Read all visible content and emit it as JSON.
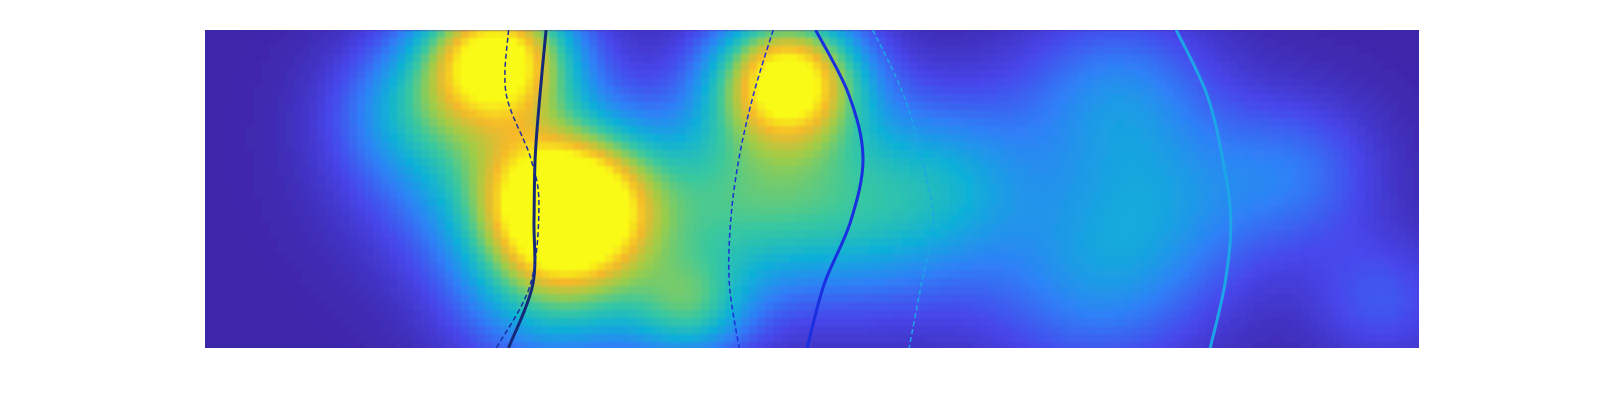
{
  "chart_data": {
    "type": "heatmap",
    "title": "",
    "xlabel": "",
    "ylabel": "",
    "grid": false,
    "legend": "none",
    "axes_visible": false,
    "colormap": "parula",
    "colormap_stops": [
      "#3e26a8",
      "#4746eb",
      "#2f80f7",
      "#0fb0d8",
      "#38c8a0",
      "#9dcd48",
      "#f5b82a",
      "#f9fb15"
    ],
    "background_color": "#3e26a8",
    "density_peaks": [
      {
        "x": 0.24,
        "y": 0.92,
        "value": 0.93,
        "spread": 0.06
      },
      {
        "x": 0.3,
        "y": 0.45,
        "value": 1.0,
        "spread": 0.065
      },
      {
        "x": 0.48,
        "y": 0.85,
        "value": 1.0,
        "spread": 0.06
      },
      {
        "x": 0.23,
        "y": 0.62,
        "value": 0.42,
        "spread": 0.1
      },
      {
        "x": 0.29,
        "y": 0.2,
        "value": 0.46,
        "spread": 0.08
      },
      {
        "x": 0.4,
        "y": 0.12,
        "value": 0.4,
        "spread": 0.05
      },
      {
        "x": 0.41,
        "y": 0.45,
        "value": 0.32,
        "spread": 0.09
      },
      {
        "x": 0.48,
        "y": 0.5,
        "value": 0.3,
        "spread": 0.09
      },
      {
        "x": 0.56,
        "y": 0.4,
        "value": 0.27,
        "spread": 0.09
      },
      {
        "x": 0.62,
        "y": 0.55,
        "value": 0.24,
        "spread": 0.08
      },
      {
        "x": 0.75,
        "y": 0.8,
        "value": 0.28,
        "spread": 0.08
      },
      {
        "x": 0.79,
        "y": 0.45,
        "value": 0.25,
        "spread": 0.09
      },
      {
        "x": 0.73,
        "y": 0.2,
        "value": 0.26,
        "spread": 0.09
      },
      {
        "x": 0.9,
        "y": 0.55,
        "value": 0.22,
        "spread": 0.07
      },
      {
        "x": 0.97,
        "y": 0.15,
        "value": 0.18,
        "spread": 0.06
      },
      {
        "x": 0.165,
        "y": 0.75,
        "value": 0.2,
        "spread": 0.06
      }
    ],
    "series": [
      {
        "color": "#142a78",
        "style": "solid",
        "width": 3,
        "points": [
          [
            0.281,
            1.0
          ],
          [
            0.276,
            0.8
          ],
          [
            0.272,
            0.6
          ],
          [
            0.271,
            0.4
          ],
          [
            0.27,
            0.2
          ],
          [
            0.25,
            0.0
          ]
        ]
      },
      {
        "color": "#1c2fa0",
        "style": "dashed",
        "width": 1.5,
        "points": [
          [
            0.25,
            1.0
          ],
          [
            0.248,
            0.8
          ],
          [
            0.268,
            0.6
          ],
          [
            0.275,
            0.45
          ],
          [
            0.268,
            0.2
          ],
          [
            0.24,
            0.0
          ]
        ]
      },
      {
        "color": "#1c2fd9",
        "style": "dashed",
        "width": 1.5,
        "points": [
          [
            0.468,
            1.0
          ],
          [
            0.452,
            0.8
          ],
          [
            0.44,
            0.6
          ],
          [
            0.433,
            0.4
          ],
          [
            0.432,
            0.2
          ],
          [
            0.44,
            0.0
          ]
        ]
      },
      {
        "color": "#1a2fe0",
        "style": "solid",
        "width": 3,
        "points": [
          [
            0.503,
            1.0
          ],
          [
            0.53,
            0.8
          ],
          [
            0.542,
            0.6
          ],
          [
            0.532,
            0.4
          ],
          [
            0.51,
            0.2
          ],
          [
            0.496,
            0.0
          ]
        ]
      },
      {
        "color": "#1ca6e8",
        "style": "dashed",
        "width": 1.5,
        "points": [
          [
            0.55,
            1.0
          ],
          [
            0.575,
            0.8
          ],
          [
            0.59,
            0.6
          ],
          [
            0.6,
            0.4
          ],
          [
            0.59,
            0.2
          ],
          [
            0.58,
            0.0
          ]
        ]
      },
      {
        "color": "#1ca6e8",
        "style": "solid",
        "width": 3,
        "points": [
          [
            0.8,
            1.0
          ],
          [
            0.825,
            0.8
          ],
          [
            0.838,
            0.6
          ],
          [
            0.845,
            0.4
          ],
          [
            0.84,
            0.2
          ],
          [
            0.828,
            0.0
          ]
        ]
      }
    ]
  }
}
